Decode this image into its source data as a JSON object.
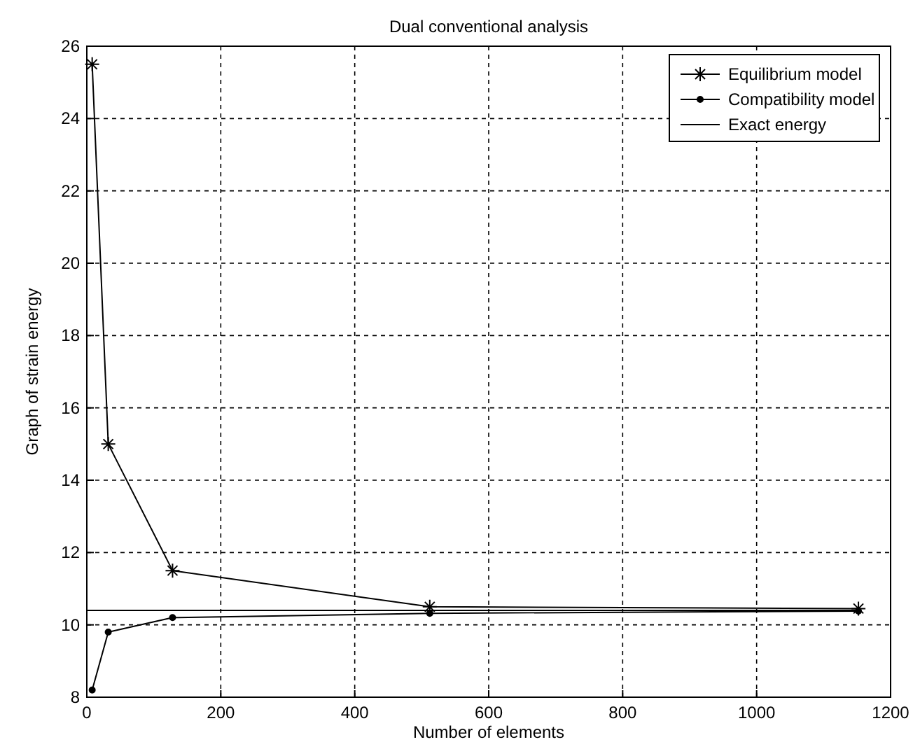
{
  "chart_data": {
    "type": "line",
    "title": "Dual conventional analysis",
    "xlabel": "Number of elements",
    "ylabel": "Graph of strain energy",
    "xlim": [
      0,
      1200
    ],
    "xticks": [
      0,
      200,
      400,
      600,
      800,
      1000,
      1200
    ],
    "ylim": [
      8,
      26
    ],
    "yticks": [
      8,
      10,
      12,
      14,
      16,
      18,
      20,
      22,
      24,
      26
    ],
    "grid": true,
    "legend": "top right",
    "line_style": "solid",
    "series": [
      {
        "name": "Equilibrium model",
        "color": "#000000",
        "marker": "cross",
        "x": [
          8,
          32,
          128,
          512,
          1152
        ],
        "values": [
          25.5,
          15,
          11.5,
          10.5,
          10.45
        ]
      },
      {
        "name": "Compatibility model",
        "color": "#000000",
        "marker": "circle",
        "x": [
          8,
          32,
          128,
          512,
          1152
        ],
        "values": [
          8.2,
          9.8,
          10.2,
          10.32,
          10.38
        ]
      },
      {
        "name": "Exact energy",
        "color": "#000000",
        "marker": "none",
        "x": [
          0,
          1152
        ],
        "values": [
          10.4,
          10.4
        ]
      }
    ]
  }
}
